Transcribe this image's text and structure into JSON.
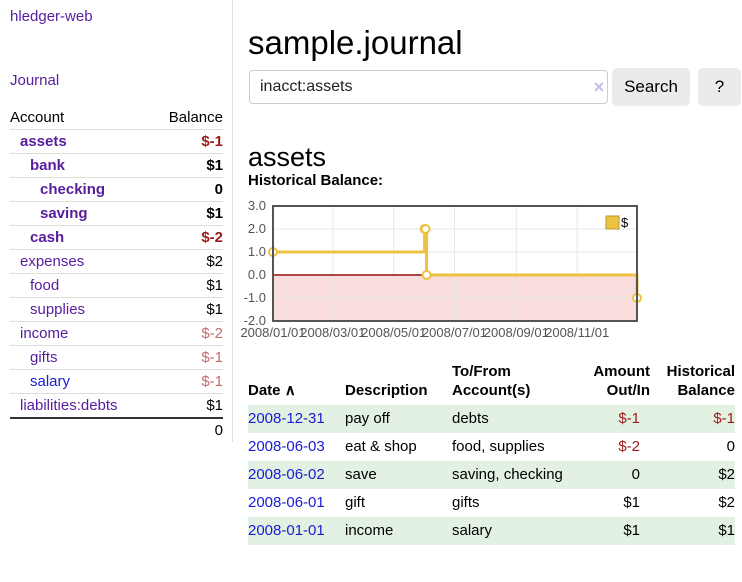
{
  "brand": "hledger-web",
  "nav": {
    "journal": "Journal"
  },
  "sidebar": {
    "account_header": "Account",
    "balance_header": "Balance",
    "rows": [
      {
        "label": "assets",
        "balance": "$-1"
      },
      {
        "label": "bank",
        "balance": "$1"
      },
      {
        "label": "checking",
        "balance": "0"
      },
      {
        "label": "saving",
        "balance": "$1"
      },
      {
        "label": "cash",
        "balance": "$-2"
      },
      {
        "label": "expenses",
        "balance": "$2"
      },
      {
        "label": "food",
        "balance": "$1"
      },
      {
        "label": "supplies",
        "balance": "$1"
      },
      {
        "label": "income",
        "balance": "$-2"
      },
      {
        "label": "gifts",
        "balance": "$-1"
      },
      {
        "label": "salary",
        "balance": "$-1"
      },
      {
        "label": "liabilities:debts",
        "balance": "$1"
      }
    ],
    "total": "0"
  },
  "header": {
    "title": "sample.journal",
    "search_value": "inacct:assets",
    "clear_icon": "×",
    "search_button": "Search",
    "help_button": "?"
  },
  "section": {
    "title": "assets",
    "chart_label": "Historical Balance:"
  },
  "chart_data": {
    "type": "line",
    "step": true,
    "title": "Historical Balance",
    "series": [
      {
        "name": "$",
        "color": "#edc240",
        "points": [
          [
            "2008-01-01",
            1
          ],
          [
            "2008-06-01",
            2
          ],
          [
            "2008-06-02",
            2
          ],
          [
            "2008-06-03",
            0
          ],
          [
            "2008-12-31",
            -1
          ]
        ]
      }
    ],
    "x_ticks": [
      "2008/01/01",
      "2008/03/01",
      "2008/05/01",
      "2008/07/01",
      "2008/09/01",
      "2008/11/01"
    ],
    "y_ticks": [
      3.0,
      2.0,
      1.0,
      0.0,
      -1.0,
      -2.0
    ],
    "xlim": [
      "2008-01-01",
      "2008-12-31"
    ],
    "ylim": [
      -2,
      3
    ],
    "grid": true,
    "legend_position": "top-right",
    "negative_region_color": "#fadddd",
    "zero_line_color": "#8e1010",
    "border_color": "#545454",
    "grid_color": "#e8e8e8"
  },
  "table": {
    "headers": {
      "date": "Date",
      "sort_icon": "∧",
      "description": "Description",
      "tofrom": "To/From Account(s)",
      "amount": "Amount Out/In",
      "historical": "Historical Balance"
    },
    "rows": [
      {
        "date": "2008-12-31",
        "description": "pay off",
        "accounts": "debts",
        "amount": "$-1",
        "historical": "$-1"
      },
      {
        "date": "2008-06-03",
        "description": "eat & shop",
        "accounts": "food, supplies",
        "amount": "$-2",
        "historical": "0"
      },
      {
        "date": "2008-06-02",
        "description": "save",
        "accounts": "saving, checking",
        "amount": "0",
        "historical": "$2"
      },
      {
        "date": "2008-06-01",
        "description": "gift",
        "accounts": "gifts",
        "amount": "$1",
        "historical": "$2"
      },
      {
        "date": "2008-01-01",
        "description": "income",
        "accounts": "salary",
        "amount": "$1",
        "historical": "$1"
      }
    ]
  }
}
